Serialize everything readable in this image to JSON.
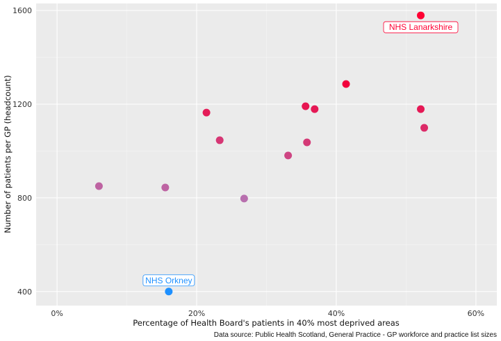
{
  "chart_data": {
    "type": "scatter",
    "xlabel": "Percentage of Health Board's patients in 40% most deprived areas",
    "ylabel": "Number of patients per GP (headcount)",
    "caption": "Data source: Public Health Scotland, General Practice - GP workforce and practice list sizes",
    "xlim": [
      -3,
      63
    ],
    "ylim": [
      340,
      1630
    ],
    "x_ticks": [
      0,
      20,
      40,
      60
    ],
    "x_tick_labels": [
      "0%",
      "20%",
      "40%",
      "60%"
    ],
    "y_ticks": [
      400,
      800,
      1200,
      1600
    ],
    "y_tick_labels": [
      "400",
      "800",
      "1200",
      "1600"
    ],
    "grid": true,
    "color_low": "#b86fae",
    "color_high": "#f2003c",
    "highlight_colors": {
      "NHS Lanarkshire": "#ff0033",
      "NHS Orkney": "#1e90ff"
    },
    "points": [
      {
        "x": 52.1,
        "y": 1579,
        "label": "NHS Lanarkshire"
      },
      {
        "x": 41.4,
        "y": 1286
      },
      {
        "x": 21.4,
        "y": 1164
      },
      {
        "x": 35.6,
        "y": 1191
      },
      {
        "x": 36.9,
        "y": 1179
      },
      {
        "x": 52.1,
        "y": 1179
      },
      {
        "x": 52.6,
        "y": 1099
      },
      {
        "x": 23.3,
        "y": 1046
      },
      {
        "x": 35.8,
        "y": 1037
      },
      {
        "x": 33.1,
        "y": 981
      },
      {
        "x": 6.0,
        "y": 850
      },
      {
        "x": 15.5,
        "y": 844
      },
      {
        "x": 26.8,
        "y": 797
      },
      {
        "x": 16.0,
        "y": 400,
        "label": "NHS Orkney"
      }
    ]
  }
}
